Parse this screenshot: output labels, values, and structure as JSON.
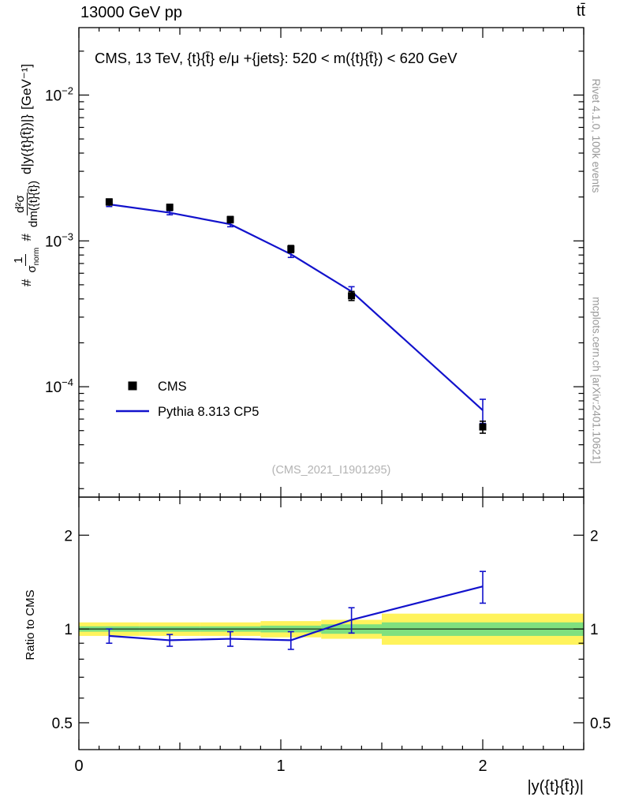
{
  "header": {
    "title_left": "13000 GeV pp",
    "title_right": "tt̄"
  },
  "credits": {
    "rivet": "Rivet 4.1.0,  100k events",
    "mcplots": "mcplots.cern.ch [arXiv:2401.10621]"
  },
  "top_panel": {
    "annotation": "CMS, 13 TeV, {t}{t̄} e/μ +{jets}: 520 < m({t}{t̄}) < 620 GeV",
    "watermark": "(CMS_2021_I1901295)",
    "ylabel": {
      "hash": "#",
      "frac1_num": "1",
      "frac1_den_main": "σ",
      "frac1_den_sub": "norm",
      "frac2_num": "d²σ",
      "frac2_den": "dm({t}{t̄})",
      "tail": "d|y({t}{t̄})|}",
      "units": "[GeV⁻¹]"
    }
  },
  "ratio_panel": {
    "ylabel": "Ratio to CMS"
  },
  "axes": {
    "x": {
      "label": "|y({t}{t̄})|",
      "min": 0,
      "max": 2.5,
      "major_ticks": [
        {
          "v": 0,
          "label": "0"
        },
        {
          "v": 1,
          "label": "1"
        },
        {
          "v": 2,
          "label": "2"
        }
      ],
      "medium_ticks": [
        0.5,
        1.5,
        2.5
      ],
      "minor_step": 0.1
    },
    "y_top": {
      "scale": "log",
      "min": 1.75e-05,
      "max": 0.029,
      "major_ticks": [
        {
          "v": 0.01,
          "base": "10",
          "exp": "−2"
        },
        {
          "v": 0.001,
          "base": "10",
          "exp": "−3"
        },
        {
          "v": 0.0001,
          "base": "10",
          "exp": "−4"
        }
      ]
    },
    "y_ratio": {
      "scale": "log",
      "min": 0.41,
      "max": 2.65,
      "major_ticks": [
        {
          "v": 2,
          "label": "2"
        },
        {
          "v": 1,
          "label": "1"
        },
        {
          "v": 0.5,
          "label": "0.5"
        }
      ],
      "minor_ticks": [
        0.6,
        0.7,
        0.8,
        0.9
      ]
    }
  },
  "chart_data": {
    "type": "line",
    "title": "CMS, 13 TeV, {t}{t̄} e/μ +{jets}: 520 < m({t}{t̄}) < 620 GeV",
    "xlabel": "|y({t}{t̄})|",
    "ylabel": "1/σ_norm d²σ/(dm({t}{t̄}) d|y({t}{t̄})|) [GeV⁻¹]",
    "xlim": [
      0,
      2.5
    ],
    "ylim_top": [
      1.75e-05,
      0.029
    ],
    "ylim_ratio": [
      0.41,
      2.65
    ],
    "x": [
      0.15,
      0.45,
      0.75,
      1.05,
      1.35,
      2.0
    ],
    "bin_edges": [
      0,
      0.3,
      0.6,
      0.9,
      1.2,
      1.5,
      2.5
    ],
    "series": [
      {
        "name": "CMS",
        "style": "marker",
        "marker": "square",
        "color": "#000000",
        "values": [
          0.00185,
          0.0017,
          0.0014,
          0.00088,
          0.00042,
          5.3e-05
        ],
        "errors": [
          9e-05,
          8e-05,
          7e-05,
          5e-05,
          3e-05,
          5e-06
        ]
      },
      {
        "name": "Pythia 8.313 CP5",
        "style": "line",
        "color": "#1212cc",
        "values": [
          0.00178,
          0.00156,
          0.0013,
          0.00081,
          0.00045,
          6.9e-05
        ],
        "errors": [
          6e-05,
          5e-05,
          5e-05,
          4e-05,
          3.5e-05,
          1.3e-05
        ]
      }
    ],
    "ratio": {
      "reference": 1,
      "values": [
        0.95,
        0.92,
        0.93,
        0.92,
        1.07,
        1.37
      ],
      "errors": [
        0.05,
        0.04,
        0.05,
        0.06,
        0.1,
        0.16
      ],
      "bands": [
        {
          "bin": [
            0,
            0.3
          ],
          "outer": [
            0.95,
            1.05
          ],
          "inner": [
            0.98,
            1.02
          ]
        },
        {
          "bin": [
            0.3,
            0.6
          ],
          "outer": [
            0.95,
            1.05
          ],
          "inner": [
            0.98,
            1.02
          ]
        },
        {
          "bin": [
            0.6,
            0.9
          ],
          "outer": [
            0.95,
            1.05
          ],
          "inner": [
            0.98,
            1.02
          ]
        },
        {
          "bin": [
            0.9,
            1.2
          ],
          "outer": [
            0.94,
            1.06
          ],
          "inner": [
            0.975,
            1.025
          ]
        },
        {
          "bin": [
            1.2,
            1.5
          ],
          "outer": [
            0.93,
            1.07
          ],
          "inner": [
            0.965,
            1.035
          ]
        },
        {
          "bin": [
            1.5,
            2.5
          ],
          "outer": [
            0.89,
            1.12
          ],
          "inner": [
            0.95,
            1.05
          ]
        }
      ],
      "band_colors": {
        "outer": "#fff35c",
        "inner": "#7fe07f"
      }
    },
    "legend": [
      {
        "label": "CMS",
        "type": "marker",
        "color": "#000000"
      },
      {
        "label": "Pythia 8.313 CP5",
        "type": "line",
        "color": "#1212cc"
      }
    ],
    "legend_position": "inside-left-lower",
    "grid": false
  }
}
